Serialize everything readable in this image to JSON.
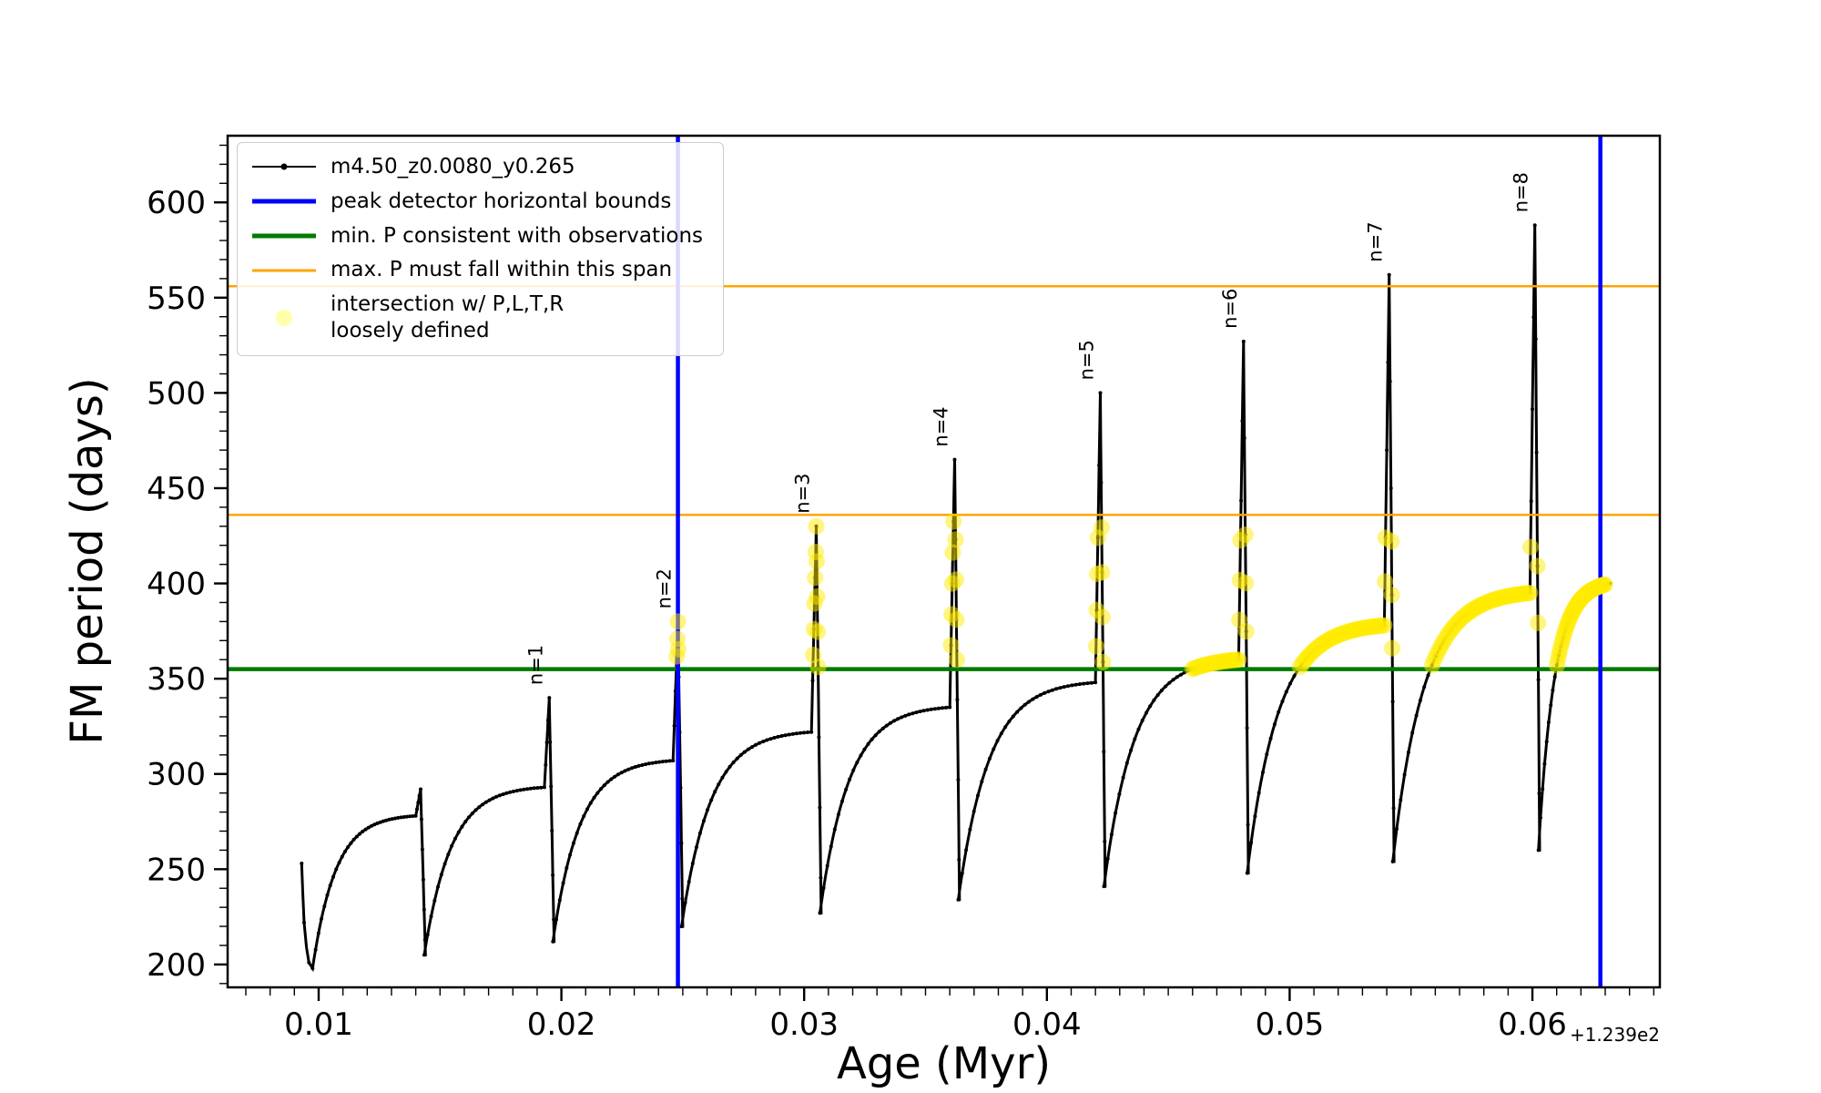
{
  "figure": {
    "background": "#ffffff",
    "xlabel": "Age (Myr)",
    "ylabel": "FM period (days)",
    "x_offset_text": "+1.239e2"
  },
  "legend": {
    "items": [
      {
        "label": "m4.50_z0.0080_y0.265",
        "kind": "line-marker",
        "color": "#000000",
        "lw": 2
      },
      {
        "label": "peak detector horizontal bounds",
        "kind": "line",
        "color": "#0000ff",
        "lw": 5
      },
      {
        "label": "min. P consistent with observations",
        "kind": "line",
        "color": "#007a00",
        "lw": 5
      },
      {
        "label": "max. P must fall within this span",
        "kind": "line",
        "color": "#ffa500",
        "lw": 3
      },
      {
        "label": "intersection w/ P,L,T,R\nloosely defined",
        "kind": "marker",
        "color": "#ffffaa"
      }
    ]
  },
  "chart_data": {
    "type": "line",
    "title": "",
    "xlabel": "Age (Myr)",
    "ylabel": "FM period (days)",
    "x_axis_offset": "+1.239e2",
    "xlim": [
      0.00625,
      0.06525
    ],
    "ylim": [
      188,
      635
    ],
    "x_ticks": [
      0.01,
      0.02,
      0.03,
      0.04,
      0.05,
      0.06
    ],
    "x_minor_step": 0.001,
    "y_ticks": [
      200,
      250,
      300,
      350,
      400,
      450,
      500,
      550,
      600
    ],
    "y_minor_step": 10,
    "grid": false,
    "legend_position": "upper left",
    "series_label": "m4.50_z0.0080_y0.265",
    "line_color": "#000000",
    "vlines": {
      "x": [
        0.0248,
        0.0628
      ],
      "color": "#0000ff",
      "label": "peak detector horizontal bounds"
    },
    "hline_min_P": {
      "y": 355,
      "color": "#007a00",
      "label": "min. P consistent with observations"
    },
    "hlines_max_P_span": {
      "y": [
        436,
        556
      ],
      "color": "#ffa500",
      "label": "max. P must fall within this span"
    },
    "intersection_color": "#ffec00",
    "yellow_region": {
      "x_range": [
        0.0246,
        0.063
      ],
      "y_range": [
        355,
        436
      ]
    },
    "lead_in": [
      [
        0.0093,
        253
      ],
      [
        0.00935,
        237
      ],
      [
        0.0094,
        222
      ],
      [
        0.0095,
        209
      ],
      [
        0.0096,
        201
      ],
      [
        0.00975,
        198
      ]
    ],
    "cycles": [
      {
        "x_start": 0.00975,
        "y_start": 198,
        "x_peak": 0.0142,
        "y_plateau": 278,
        "peak": 292,
        "y_drop": 205,
        "label": null
      },
      {
        "x_start": 0.01435,
        "y_start": 205,
        "x_peak": 0.0195,
        "y_plateau": 293,
        "peak": 340,
        "y_drop": 212,
        "label": "n=1"
      },
      {
        "x_start": 0.01965,
        "y_start": 212,
        "x_peak": 0.0248,
        "y_plateau": 307,
        "peak": 380,
        "y_drop": 220,
        "label": "n=2"
      },
      {
        "x_start": 0.02495,
        "y_start": 220,
        "x_peak": 0.0305,
        "y_plateau": 322,
        "peak": 430,
        "y_drop": 227,
        "label": "n=3"
      },
      {
        "x_start": 0.03065,
        "y_start": 227,
        "x_peak": 0.0362,
        "y_plateau": 335,
        "peak": 465,
        "y_drop": 234,
        "label": "n=4"
      },
      {
        "x_start": 0.03635,
        "y_start": 234,
        "x_peak": 0.0422,
        "y_plateau": 348,
        "peak": 500,
        "y_drop": 241,
        "label": "n=5"
      },
      {
        "x_start": 0.04235,
        "y_start": 241,
        "x_peak": 0.0481,
        "y_plateau": 360,
        "peak": 527,
        "y_drop": 248,
        "label": "n=6"
      },
      {
        "x_start": 0.04825,
        "y_start": 248,
        "x_peak": 0.0541,
        "y_plateau": 378,
        "peak": 562,
        "y_drop": 254,
        "label": "n=7"
      },
      {
        "x_start": 0.05425,
        "y_start": 254,
        "x_peak": 0.0601,
        "y_plateau": 395,
        "peak": 588,
        "y_drop": 260,
        "label": "n=8"
      },
      {
        "x_start": 0.06025,
        "y_start": 260,
        "x_peak": 0.0632,
        "y_plateau": 400,
        "peak": null,
        "y_drop": null,
        "label": null
      }
    ]
  }
}
